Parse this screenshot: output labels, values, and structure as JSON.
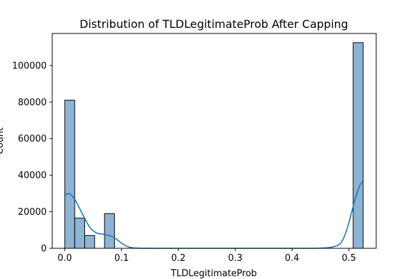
{
  "chart_data": {
    "type": "bar",
    "title": "Distribution of TLDLegitimateProb After Capping",
    "xlabel": "TLDLegitimateProb",
    "ylabel": "Count",
    "xlim": [
      -0.022,
      0.548
    ],
    "ylim": [
      0,
      117500
    ],
    "x_ticks": [
      0.0,
      0.1,
      0.2,
      0.3,
      0.4,
      0.5
    ],
    "x_tick_labels": [
      "0.0",
      "0.1",
      "0.2",
      "0.3",
      "0.4",
      "0.5"
    ],
    "y_ticks": [
      0,
      20000,
      40000,
      60000,
      80000,
      100000
    ],
    "y_tick_labels": [
      "0",
      "20000",
      "40000",
      "60000",
      "80000",
      "100000"
    ],
    "bar_color": "#8db4d4",
    "edge_color": "#000000",
    "kde_color": "#1f77b4",
    "grid": false,
    "bins": [
      {
        "x0": 0.0,
        "x1": 0.0175,
        "value": 81000
      },
      {
        "x0": 0.0175,
        "x1": 0.035,
        "value": 16500
      },
      {
        "x0": 0.035,
        "x1": 0.0525,
        "value": 7000
      },
      {
        "x0": 0.07,
        "x1": 0.0875,
        "value": 19000
      },
      {
        "x0": 0.5075,
        "x1": 0.525,
        "value": 112500
      }
    ],
    "kde": {
      "x": [
        0.0,
        0.005,
        0.01,
        0.015,
        0.02,
        0.025,
        0.03,
        0.035,
        0.04,
        0.045,
        0.05,
        0.055,
        0.06,
        0.065,
        0.07,
        0.075,
        0.08,
        0.085,
        0.09,
        0.095,
        0.1,
        0.105,
        0.11,
        0.115,
        0.12,
        0.13,
        0.14,
        0.16,
        0.2,
        0.3,
        0.4,
        0.44,
        0.46,
        0.47,
        0.48,
        0.485,
        0.49,
        0.495,
        0.5,
        0.505,
        0.51,
        0.515,
        0.52,
        0.525
      ],
      "y": [
        29000,
        30000,
        29500,
        28000,
        25500,
        22500,
        19500,
        16500,
        13500,
        11000,
        9500,
        8500,
        8000,
        7800,
        7600,
        7300,
        6800,
        6200,
        5200,
        4000,
        2800,
        1800,
        1000,
        500,
        250,
        80,
        20,
        5,
        0,
        0,
        0,
        0,
        200,
        600,
        1500,
        2600,
        5000,
        9000,
        14000,
        20000,
        26000,
        31000,
        35000,
        37000
      ]
    }
  }
}
